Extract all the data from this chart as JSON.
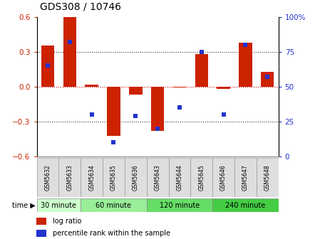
{
  "title": "GDS308 / 10746",
  "samples": [
    "GSM5632",
    "GSM5633",
    "GSM5634",
    "GSM5635",
    "GSM5636",
    "GSM5643",
    "GSM5644",
    "GSM5645",
    "GSM5646",
    "GSM5647",
    "GSM5648"
  ],
  "log_ratio": [
    0.35,
    0.6,
    0.02,
    -0.42,
    -0.07,
    -0.38,
    -0.01,
    0.28,
    -0.02,
    0.38,
    0.13
  ],
  "percentile": [
    65,
    82,
    30,
    10,
    29,
    20,
    35,
    75,
    30,
    80,
    57
  ],
  "time_groups": [
    {
      "label": "30 minute",
      "start": 0,
      "end": 2,
      "color": "#ccffcc"
    },
    {
      "label": "60 minute",
      "start": 2,
      "end": 5,
      "color": "#99ee99"
    },
    {
      "label": "120 minute",
      "start": 5,
      "end": 8,
      "color": "#66dd66"
    },
    {
      "label": "240 minute",
      "start": 8,
      "end": 11,
      "color": "#44cc44"
    }
  ],
  "ylim": [
    -0.6,
    0.6
  ],
  "yticks_left": [
    -0.6,
    -0.3,
    0.0,
    0.3,
    0.6
  ],
  "yticks_right": [
    0,
    25,
    50,
    75,
    100
  ],
  "bar_color": "#cc2200",
  "dot_color": "#2233cc",
  "grid_lines": [
    -0.3,
    0.0,
    0.3
  ],
  "title_fontsize": 10
}
